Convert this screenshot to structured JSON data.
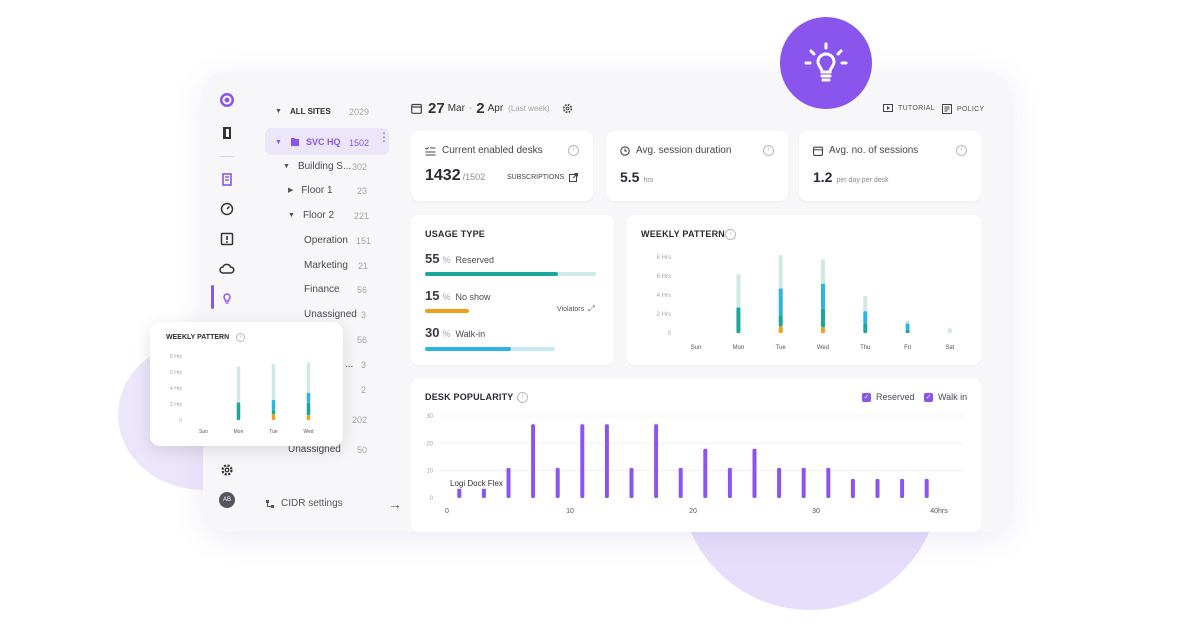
{
  "colors": {
    "accent": "#8a55ec",
    "teal": "#1aa89a",
    "light_teal": "#cfeae6",
    "cyan": "#2bb5e0",
    "orange": "#f0a01e"
  },
  "sidebar_icons": [
    "logo-icon",
    "door-icon",
    "building-icon",
    "gauge-icon",
    "alert-icon",
    "cloud-icon",
    "lightbulb-icon",
    "gear-icon"
  ],
  "user_avatar": "AB",
  "tree": {
    "all_sites": {
      "label": "ALL SITES",
      "count": "2029"
    },
    "svc_hq": {
      "label": "SVC HQ",
      "count": "1502"
    },
    "building": {
      "label": "Building S...",
      "count": "302"
    },
    "floor1": {
      "label": "Floor 1",
      "count": "23"
    },
    "floor2": {
      "label": "Floor 2",
      "count": "221"
    },
    "operation": {
      "label": "Operation",
      "count": "151"
    },
    "marketing": {
      "label": "Marketing",
      "count": "21"
    },
    "finance": {
      "label": "Finance",
      "count": "56"
    },
    "unassigned1": {
      "label": "Unassigned",
      "count": "3"
    },
    "partial1": {
      "count": "56"
    },
    "partial2": {
      "label": "...",
      "count": "3"
    },
    "partial3": {
      "count": "2"
    },
    "partial4": {
      "count": "202"
    },
    "unassigned2": {
      "label": "Unassigned",
      "count": "50"
    },
    "cidr": "CIDR settings"
  },
  "date_range": {
    "start_day": "27",
    "start_month": "Mar",
    "sep": "-",
    "end_day": "2",
    "end_month": "Apr",
    "note": "(Last week)"
  },
  "top_links": {
    "tutorial": "TUTORIAL",
    "policy": "POLICY"
  },
  "stats": {
    "enabled": {
      "label": "Current enabled desks",
      "value": "1432",
      "total": "/1502",
      "link": "SUBSCRIPTIONS"
    },
    "duration": {
      "label": "Avg. session duration",
      "value": "5.5",
      "unit": "hrs"
    },
    "sessions": {
      "label": "Avg. no. of sessions",
      "value": "1.2",
      "unit": "per day per desk"
    }
  },
  "usage": {
    "title": "USAGE TYPE",
    "rows": [
      {
        "pct": "55",
        "label": "Reserved",
        "level": 0.78
      },
      {
        "pct": "15",
        "label": "No show",
        "level": 0.26
      },
      {
        "pct": "30",
        "label": "Walk-in",
        "level": 0.5
      }
    ],
    "percent_sign": "%",
    "violators": "Violators"
  },
  "weekly": {
    "title": "WEEKLY PATTERN",
    "y_ticks": [
      "8 Hrs",
      "6 Hrs",
      "4 Hrs",
      "2 Hrs",
      "0"
    ],
    "days": [
      "Sun",
      "Mon",
      "Tue",
      "Wed",
      "Thu",
      "Fri",
      "Sat"
    ]
  },
  "popularity": {
    "title": "DESK POPULARITY",
    "legend": [
      "Reserved",
      "Walk in"
    ],
    "tooltip": "Logi Dock Flex"
  },
  "float_weekly": {
    "title": "WEEKLY PATTERN",
    "days": [
      "Sun",
      "Mon",
      "Tue",
      "Wed"
    ]
  },
  "chart_data": [
    {
      "type": "bar",
      "title": "WEEKLY PATTERN",
      "categories": [
        "Sun",
        "Mon",
        "Tue",
        "Wed",
        "Thu",
        "Fri",
        "Sat"
      ],
      "ylim": [
        0,
        8
      ],
      "y_ticks": [
        "8 Hrs",
        "6 Hrs",
        "4 Hrs",
        "2 Hrs",
        "0"
      ],
      "stacked": true,
      "series": [
        {
          "values": [
            0,
            3.5,
            3.5,
            2.6,
            1.6,
            0.3,
            0.5
          ]
        },
        {
          "values": [
            0,
            0,
            0.7,
            0.6,
            0,
            0,
            0
          ]
        },
        {
          "values": [
            0,
            0,
            2.8,
            2.6,
            1.3,
            0.6,
            0
          ]
        },
        {
          "values": [
            0,
            2.7,
            1.2,
            2.0,
            1.0,
            0.4,
            0
          ]
        }
      ]
    },
    {
      "type": "bar",
      "title": "DESK POPULARITY",
      "x": [
        1,
        3,
        5,
        7,
        9,
        11,
        13,
        15,
        17,
        19,
        21,
        23,
        25,
        27,
        29,
        31,
        33,
        35,
        37,
        39
      ],
      "values": [
        4,
        4,
        11,
        27,
        11,
        27,
        27,
        11,
        27,
        11,
        18,
        11,
        18,
        11,
        11,
        11,
        7,
        7,
        7,
        7
      ],
      "ylim": [
        0,
        30
      ],
      "y_ticks": [
        "30",
        "20",
        "10",
        "0"
      ],
      "x_ticks": [
        "0",
        "10",
        "20",
        "30",
        "40hrs"
      ],
      "legend": [
        "Reserved",
        "Walk in"
      ]
    },
    {
      "type": "bar",
      "title": "WEEKLY PATTERN",
      "categories": [
        "Sun",
        "Mon",
        "Tue",
        "Wed"
      ],
      "ylim": [
        0,
        8
      ],
      "y_ticks": [
        "8 Hrs",
        "6 Hrs",
        "4 Hrs",
        "2 Hrs",
        "0"
      ],
      "stacked": true,
      "series": [
        {
          "values": [
            0,
            4.5,
            4.5,
            3.8
          ]
        },
        {
          "values": [
            0,
            0,
            0.7,
            0.6
          ]
        },
        {
          "values": [
            0,
            0,
            1.2,
            1.2
          ]
        },
        {
          "values": [
            0,
            2.2,
            0.6,
            1.6
          ]
        }
      ]
    }
  ]
}
